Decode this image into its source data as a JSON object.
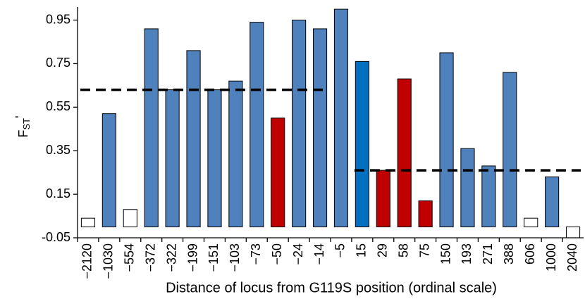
{
  "chart_data": {
    "type": "bar",
    "y_label": {
      "main": "F",
      "sub": "ST",
      "suffix": "'"
    },
    "x_label": "Distance of locus from G119S position (ordinal scale)",
    "categories": [
      "−2120",
      "−1030",
      "−554",
      "−372",
      "−322",
      "−199",
      "−151",
      "−103",
      "−73",
      "−50",
      "−24",
      "−14",
      "−5",
      "15",
      "29",
      "58",
      "75",
      "150",
      "193",
      "271",
      "388",
      "606",
      "1000",
      "2040"
    ],
    "values": [
      0.04,
      0.52,
      0.08,
      0.91,
      0.63,
      0.81,
      0.63,
      0.67,
      0.94,
      0.5,
      0.95,
      0.91,
      1.0,
      0.76,
      0.26,
      0.68,
      0.12,
      0.8,
      0.36,
      0.28,
      0.71,
      0.04,
      0.23,
      -0.05
    ],
    "colors": [
      "#ffffff",
      "#4f81bd",
      "#ffffff",
      "#4f81bd",
      "#4f81bd",
      "#4f81bd",
      "#4f81bd",
      "#4f81bd",
      "#4f81bd",
      "#c00000",
      "#4f81bd",
      "#4f81bd",
      "#4f81bd",
      "#0070c0",
      "#c00000",
      "#c00000",
      "#c00000",
      "#4f81bd",
      "#4f81bd",
      "#4f81bd",
      "#4f81bd",
      "#ffffff",
      "#4f81bd",
      "#ffffff"
    ],
    "reference_lines": [
      {
        "value": 0.63,
        "from": "−2120",
        "to": "−14"
      },
      {
        "value": 0.26,
        "from": "15",
        "to": "2040"
      }
    ],
    "ylim": [
      -0.05,
      1.01
    ],
    "yticks": [
      -0.05,
      0.15,
      0.35,
      0.55,
      0.75,
      0.95
    ],
    "grid": false
  }
}
